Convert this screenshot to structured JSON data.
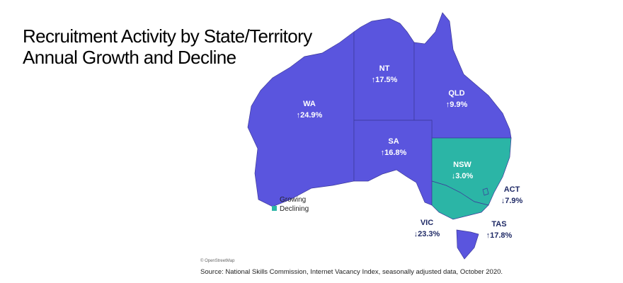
{
  "title": [
    "Recruitment Activity by State/Territory",
    "Annual Growth and Decline"
  ],
  "legend": [
    {
      "label": "Growing",
      "color": "#5a55de"
    },
    {
      "label": "Declining",
      "color": "#2bb5a6"
    }
  ],
  "regions": [
    {
      "name": "WA",
      "change": "↑24.9%",
      "status": 0
    },
    {
      "name": "NT",
      "change": "↑17.5%",
      "status": 0
    },
    {
      "name": "QLD",
      "change": "↑9.9%",
      "status": 0
    },
    {
      "name": "SA",
      "change": "↑16.8%",
      "status": 0
    },
    {
      "name": "NSW",
      "change": "↓3.0%",
      "status": 1
    },
    {
      "name": "ACT",
      "change": "↓7.9%",
      "status": 1
    },
    {
      "name": "VIC",
      "change": "↓23.3%",
      "status": 1
    },
    {
      "name": "TAS",
      "change": "↑17.8%",
      "status": 0
    }
  ],
  "attribution": "© OpenStreetMap",
  "source": "Source: National Skills Commission, Internet Vacancy Index, seasonally adjusted data, October 2020."
}
